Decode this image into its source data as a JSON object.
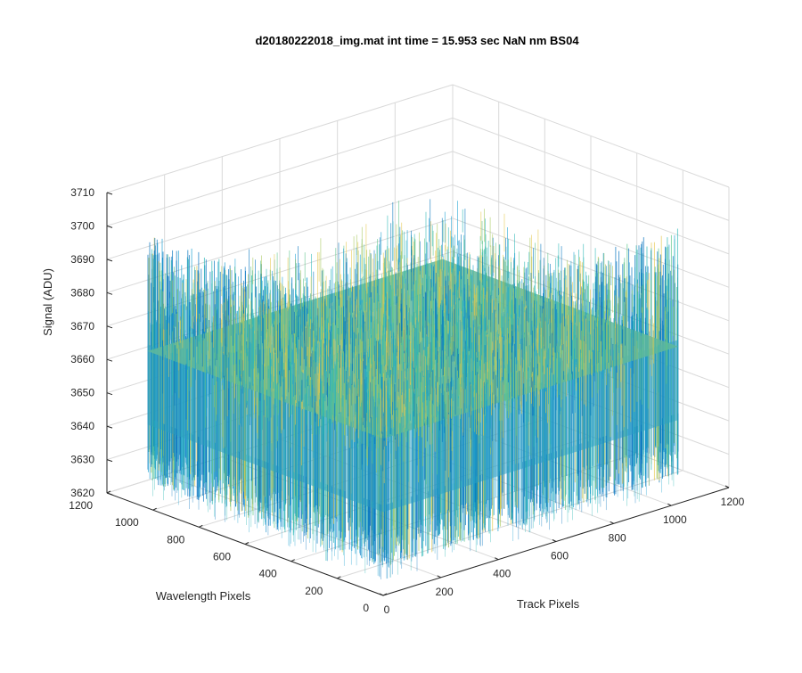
{
  "chart_data": {
    "type": "surface",
    "title": "d20180222018_img.mat int time = 15.953 sec  NaN nm BS04",
    "xlabel": "Track Pixels",
    "ylabel": "Wavelength Pixels",
    "zlabel": "Signal (ADU)",
    "xlim": [
      0,
      1200
    ],
    "ylim": [
      0,
      1200
    ],
    "zlim": [
      3620,
      3710
    ],
    "x_ticks": [
      0,
      200,
      400,
      600,
      800,
      1000,
      1200
    ],
    "y_ticks": [
      0,
      200,
      400,
      600,
      800,
      1000,
      1200
    ],
    "z_ticks": [
      3620,
      3630,
      3640,
      3650,
      3660,
      3670,
      3680,
      3690,
      3700,
      3710
    ],
    "surface_extent": {
      "x": [
        0,
        1024
      ],
      "y": [
        0,
        1024
      ]
    },
    "signal_mean": 3655,
    "signal_range": [
      3628,
      3703
    ],
    "colormap": [
      "#0072bd",
      "#1a9fd2",
      "#2ab7b5",
      "#5bc58a",
      "#a8c85c",
      "#e6c84e"
    ],
    "grid": true,
    "view": "3d-oblique"
  }
}
